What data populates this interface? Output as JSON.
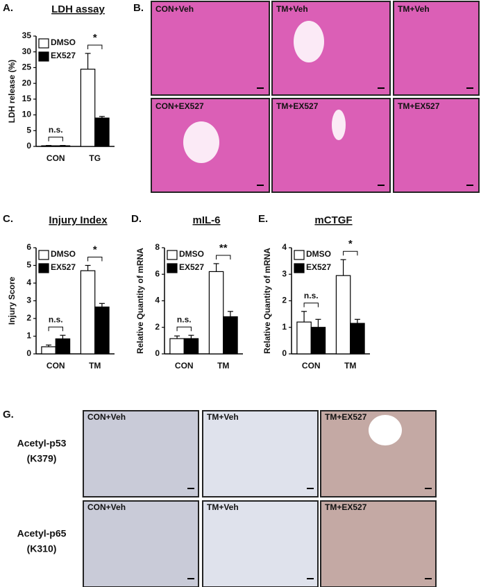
{
  "chart_data": [
    {
      "type": "bar",
      "panel": "A.",
      "title": "LDH assay",
      "ylabel": "LDH release (%)",
      "categories": [
        "CON",
        "TG"
      ],
      "series": [
        {
          "name": "DMSO",
          "color": "#ffffff",
          "values": [
            0.2,
            24.5
          ],
          "errors": [
            0.1,
            5
          ]
        },
        {
          "name": "EX527",
          "color": "#000000",
          "values": [
            0.2,
            9
          ],
          "errors": [
            0.1,
            0.5
          ]
        }
      ],
      "ylim": [
        0,
        35
      ],
      "yticks": [
        0,
        5,
        10,
        15,
        20,
        25,
        30,
        35
      ],
      "annotations": [
        "n.s.",
        "*"
      ],
      "legend": "upper left"
    },
    {
      "type": "bar",
      "panel": "C.",
      "title": "Injury Index",
      "ylabel": "Injury Score",
      "categories": [
        "CON",
        "TM"
      ],
      "series": [
        {
          "name": "DMSO",
          "color": "#ffffff",
          "values": [
            0.4,
            4.7
          ],
          "errors": [
            0.1,
            0.3
          ]
        },
        {
          "name": "EX527",
          "color": "#000000",
          "values": [
            0.85,
            2.65
          ],
          "errors": [
            0.2,
            0.2
          ]
        }
      ],
      "ylim": [
        0,
        6
      ],
      "yticks": [
        0,
        1,
        2,
        3,
        4,
        5,
        6
      ],
      "annotations": [
        "n.s.",
        "*"
      ],
      "legend": "upper left"
    },
    {
      "type": "bar",
      "panel": "D.",
      "title": "mIL-6",
      "ylabel": "Relative Quantity of mRNA",
      "categories": [
        "CON",
        "TM"
      ],
      "series": [
        {
          "name": "DMSO",
          "color": "#ffffff",
          "values": [
            1.15,
            6.2
          ],
          "errors": [
            0.2,
            0.6
          ]
        },
        {
          "name": "EX527",
          "color": "#000000",
          "values": [
            1.15,
            2.8
          ],
          "errors": [
            0.25,
            0.4
          ]
        }
      ],
      "ylim": [
        0,
        8
      ],
      "yticks": [
        0,
        2,
        4,
        6,
        8
      ],
      "annotations": [
        "n.s.",
        "**"
      ],
      "legend": "upper left"
    },
    {
      "type": "bar",
      "panel": "E.",
      "title": "mCTGF",
      "ylabel": "Relative Quantity of mRNA",
      "categories": [
        "CON",
        "TM"
      ],
      "series": [
        {
          "name": "DMSO",
          "color": "#ffffff",
          "values": [
            1.2,
            2.95
          ],
          "errors": [
            0.4,
            0.6
          ]
        },
        {
          "name": "EX527",
          "color": "#000000",
          "values": [
            1.0,
            1.15
          ],
          "errors": [
            0.3,
            0.15
          ]
        }
      ],
      "ylim": [
        0,
        4
      ],
      "yticks": [
        0,
        1,
        2,
        3,
        4
      ],
      "annotations": [
        "n.s.",
        "*"
      ],
      "legend": "upper left"
    }
  ],
  "micrographs_b": {
    "panel": "B.",
    "labels": [
      "CON+Veh",
      "TM+Veh",
      "TM+Veh",
      "CON+EX527",
      "TM+EX527",
      "TM+EX527"
    ]
  },
  "micrographs_g": {
    "panel": "G.",
    "row_labels": [
      [
        "Acetyl-p53",
        "(K379)"
      ],
      [
        "Acetyl-p65",
        "(K310)"
      ]
    ],
    "labels": [
      "CON+Veh",
      "TM+Veh",
      "TM+EX527",
      "CON+Veh",
      "TM+Veh",
      "TM+EX527"
    ]
  }
}
